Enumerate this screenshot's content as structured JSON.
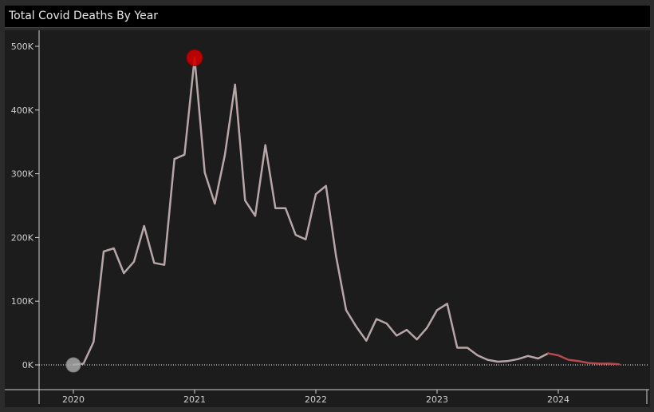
{
  "title": "Total Covid Deaths By Year",
  "colors": {
    "page_bg": "#2b2b2b",
    "plot_bg": "#1c1c1c",
    "title_bg": "#000000",
    "line_actual": "#b7a6a8",
    "line_forecast": "#b54a4e",
    "peak_marker": "#cc0000",
    "start_marker": "#a8a8a8",
    "zero_line": "#ffffff",
    "text": "#d0d0d0"
  },
  "chart_data": {
    "type": "line",
    "title": "Total Covid Deaths By Year",
    "xlabel": "",
    "ylabel": "",
    "x_tick_labels": [
      "2020",
      "2021",
      "2022",
      "2023",
      "2024"
    ],
    "y_tick_labels": [
      "500K",
      "400K",
      "300K",
      "200K",
      "100K",
      "0K"
    ],
    "y_tick_values": [
      500000,
      400000,
      300000,
      200000,
      100000,
      0
    ],
    "ylim": [
      -35000,
      500000
    ],
    "xlim": [
      "2019-07",
      "2024-12"
    ],
    "grid": false,
    "zero_reference_line": true,
    "series": [
      {
        "role": "actual",
        "x": [
          "2020-01",
          "2020-02",
          "2020-03",
          "2020-04",
          "2020-05",
          "2020-06",
          "2020-07",
          "2020-08",
          "2020-09",
          "2020-10",
          "2020-11",
          "2020-12",
          "2021-01",
          "2021-02",
          "2021-03",
          "2021-04",
          "2021-05",
          "2021-06",
          "2021-07",
          "2021-08",
          "2021-09",
          "2021-10",
          "2021-11",
          "2021-12",
          "2022-01",
          "2022-02",
          "2022-03",
          "2022-04",
          "2022-05",
          "2022-06",
          "2022-07",
          "2022-08",
          "2022-09",
          "2022-10",
          "2022-11",
          "2022-12",
          "2023-01",
          "2023-02",
          "2023-03",
          "2023-04",
          "2023-05",
          "2023-06",
          "2023-07",
          "2023-08",
          "2023-09",
          "2023-10",
          "2023-11",
          "2023-12"
        ],
        "y": [
          0,
          2000,
          36000,
          178000,
          183000,
          144000,
          162000,
          218000,
          160000,
          157000,
          323000,
          330000,
          482000,
          302000,
          253000,
          330000,
          440000,
          258000,
          234000,
          345000,
          246000,
          246000,
          204000,
          197000,
          268000,
          281000,
          171000,
          86000,
          60000,
          38000,
          72000,
          65000,
          46000,
          55000,
          40000,
          58000,
          86000,
          96000,
          27000,
          27000,
          15000,
          8000,
          5000,
          6000,
          9000,
          14000,
          10000,
          18000
        ]
      },
      {
        "role": "forecast",
        "x": [
          "2023-12",
          "2024-01",
          "2024-02",
          "2024-03",
          "2024-04",
          "2024-05",
          "2024-06",
          "2024-07"
        ],
        "y": [
          18000,
          15000,
          8000,
          6000,
          3000,
          2000,
          2000,
          1000
        ]
      }
    ],
    "highlighted_points": [
      {
        "label": "peak",
        "x": "2021-01",
        "y": 482000
      },
      {
        "label": "start",
        "x": "2020-01",
        "y": 0
      }
    ]
  }
}
